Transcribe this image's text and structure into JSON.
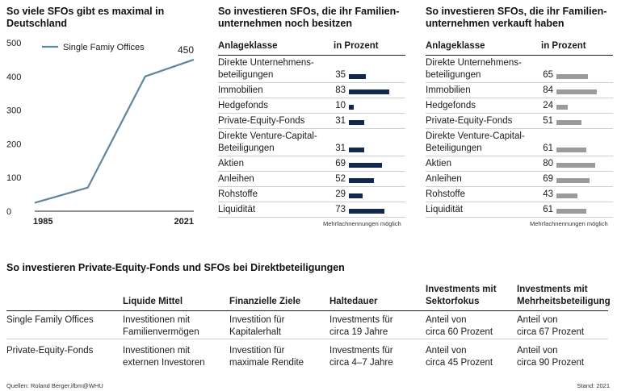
{
  "line_chart": {
    "title_lines": [
      "So viele SFOs gibt es maximal in",
      "Deutschland"
    ],
    "legend_label": "Single Famiy Offices",
    "end_value_label": "450",
    "color": "#5e86a0"
  },
  "table_left": {
    "title_lines": [
      "So investieren SFOs, die ihr Familien-",
      "unternehmen noch besitzen"
    ],
    "col_header_class": "Anlageklasse",
    "col_header_value": "in Prozent",
    "bar_color": "#13294b",
    "rows": [
      {
        "label_lines": [
          "Direkte Unternehmens-",
          "beteiligungen"
        ],
        "value": "35"
      },
      {
        "label_lines": [
          "Immobilien"
        ],
        "value": "83"
      },
      {
        "label_lines": [
          "Hedgefonds"
        ],
        "value": "10"
      },
      {
        "label_lines": [
          "Private-Equity-Fonds"
        ],
        "value": "31"
      },
      {
        "label_lines": [
          "Direkte Venture-Capital-",
          "Beteiligungen"
        ],
        "value": "31"
      },
      {
        "label_lines": [
          "Aktien"
        ],
        "value": "69"
      },
      {
        "label_lines": [
          "Anleihen"
        ],
        "value": "52"
      },
      {
        "label_lines": [
          "Rohstoffe"
        ],
        "value": "29"
      },
      {
        "label_lines": [
          "Liquidität"
        ],
        "value": "73"
      }
    ],
    "note": "Mehrfachnennungen möglich"
  },
  "table_right": {
    "title_lines": [
      "So investieren SFOs, die ihr Familien-",
      "unternehmen verkauft haben"
    ],
    "col_header_class": "Anlageklasse",
    "col_header_value": "in Prozent",
    "bar_color": "#9b9b9b",
    "rows": [
      {
        "label_lines": [
          "Direkte Unternehmens-",
          "beteiligungen"
        ],
        "value": "65"
      },
      {
        "label_lines": [
          "Immobilien"
        ],
        "value": "84"
      },
      {
        "label_lines": [
          "Hedgefonds"
        ],
        "value": "24"
      },
      {
        "label_lines": [
          "Private-Equity-Fonds"
        ],
        "value": "51"
      },
      {
        "label_lines": [
          "Direkte Venture-Capital-",
          "Beteiligungen"
        ],
        "value": "61"
      },
      {
        "label_lines": [
          "Aktien"
        ],
        "value": "80"
      },
      {
        "label_lines": [
          "Anleihen"
        ],
        "value": "69"
      },
      {
        "label_lines": [
          "Rohstoffe"
        ],
        "value": "43"
      },
      {
        "label_lines": [
          "Liquidität"
        ],
        "value": "61"
      }
    ],
    "note": "Mehrfachnennungen möglich"
  },
  "bottom_table": {
    "title": "So investieren Private-Equity-Fonds und SFOs bei Direktbeteiligungen",
    "headers": [
      {
        "lines": [
          ""
        ]
      },
      {
        "lines": [
          "Liquide Mittel"
        ]
      },
      {
        "lines": [
          "Finanzielle Ziele"
        ]
      },
      {
        "lines": [
          "Haltedauer"
        ]
      },
      {
        "lines": [
          "Investments mit",
          "Sektorfokus"
        ]
      },
      {
        "lines": [
          "Investments mit",
          "Mehrheitsbeteiligung"
        ]
      }
    ],
    "rows": [
      {
        "cells": [
          {
            "lines": [
              "Single Family Offices"
            ]
          },
          {
            "lines": [
              "Investitionen mit",
              "Familienvermögen"
            ]
          },
          {
            "lines": [
              "Investition für",
              "Kapitalerhalt"
            ]
          },
          {
            "lines": [
              "Investments für",
              "circa 19 Jahre"
            ]
          },
          {
            "lines": [
              "Anteil von",
              "circa 60 Prozent"
            ]
          },
          {
            "lines": [
              "Anteil von",
              "circa 67 Prozent"
            ]
          }
        ]
      },
      {
        "cells": [
          {
            "lines": [
              "Private-Equity-Fonds"
            ]
          },
          {
            "lines": [
              "Investitionen mit",
              "externen Investoren"
            ]
          },
          {
            "lines": [
              "Investition für",
              "maximale Rendite"
            ]
          },
          {
            "lines": [
              "Investments für",
              "circa 4–7 Jahre"
            ]
          },
          {
            "lines": [
              "Anteil von",
              "circa 45 Prozent"
            ]
          },
          {
            "lines": [
              "Anteil von",
              "circa 90 Prozent"
            ]
          }
        ]
      }
    ]
  },
  "footer": {
    "source": "Quellen: Roland Berger,ifbm@WHU",
    "stand": "Stand: 2021"
  },
  "chart_data": [
    {
      "type": "line",
      "series": [
        {
          "name": "Single Famiy Offices",
          "x": [
            1985,
            1997,
            2010,
            2021
          ],
          "values": [
            25,
            70,
            400,
            450
          ]
        }
      ],
      "xticks": [
        "1985",
        "2021"
      ],
      "yticks": [
        0,
        100,
        200,
        300,
        400,
        500
      ],
      "ylim": [
        0,
        500
      ],
      "xlim": [
        1985,
        2021
      ],
      "annotations": [
        {
          "text": "450",
          "x": 2021,
          "y": 450
        }
      ],
      "grid": false
    },
    {
      "type": "bar",
      "orientation": "horizontal",
      "categories": [
        "Direkte Unternehmensbeteiligungen",
        "Immobilien",
        "Hedgefonds",
        "Private-Equity-Fonds",
        "Direkte Venture-Capital-Beteiligungen",
        "Aktien",
        "Anleihen",
        "Rohstoffe",
        "Liquidität"
      ],
      "values": [
        35,
        83,
        10,
        31,
        31,
        69,
        52,
        29,
        73
      ]
    },
    {
      "type": "bar",
      "orientation": "horizontal",
      "categories": [
        "Direkte Unternehmensbeteiligungen",
        "Immobilien",
        "Hedgefonds",
        "Private-Equity-Fonds",
        "Direkte Venture-Capital-Beteiligungen",
        "Aktien",
        "Anleihen",
        "Rohstoffe",
        "Liquidität"
      ],
      "values": [
        65,
        84,
        24,
        51,
        61,
        80,
        69,
        43,
        61
      ]
    }
  ]
}
